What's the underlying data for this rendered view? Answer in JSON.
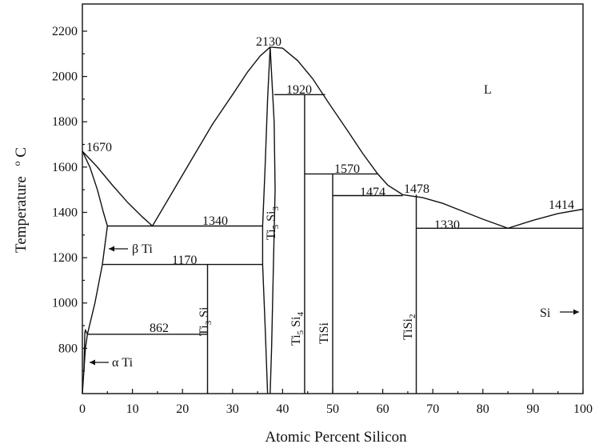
{
  "chart_data": {
    "type": "phase-diagram",
    "xlabel": "Atomic Percent Silicon",
    "ylabel": "Temperature",
    "ylabel_unit": "°C",
    "xlim": [
      0,
      100
    ],
    "ylim": [
      600,
      2320
    ],
    "x_ticks": [
      0,
      10,
      20,
      30,
      40,
      50,
      60,
      70,
      80,
      90,
      100
    ],
    "y_ticks": [
      800,
      1000,
      1200,
      1400,
      1600,
      1800,
      2000,
      2200
    ],
    "grid": false,
    "temperature_labels": [
      {
        "text": "1670",
        "x": 0,
        "t": 1670
      },
      {
        "text": "2130",
        "x": 37.5,
        "t": 2130
      },
      {
        "text": "1920",
        "x": 44,
        "t": 1920
      },
      {
        "text": "1570",
        "x": 50,
        "t": 1570
      },
      {
        "text": "1474",
        "x": 58,
        "t": 1474
      },
      {
        "text": "1478",
        "x": 64,
        "t": 1478
      },
      {
        "text": "1414",
        "x": 100,
        "t": 1414
      },
      {
        "text": "1340",
        "x": 26,
        "t": 1340
      },
      {
        "text": "1170",
        "x": 21,
        "t": 1170
      },
      {
        "text": "862",
        "x": 16,
        "t": 862
      },
      {
        "text": "1330",
        "x": 75,
        "t": 1330
      }
    ],
    "phase_labels": {
      "liquid": "L",
      "beta_ti": "β Ti",
      "alpha_ti": "α Ti",
      "si": "Si",
      "ti3si": {
        "base": "Ti",
        "sub1": "3",
        "mid": " Si",
        "sub2": ""
      },
      "ti5si3": {
        "base": "Ti",
        "sub1": "5",
        "mid": " Si",
        "sub2": "3"
      },
      "ti5si4": {
        "base": "Ti",
        "sub1": "5",
        "mid": " Si",
        "sub2": "4"
      },
      "tisi": {
        "base": "TiSi",
        "sub1": "",
        "mid": "",
        "sub2": ""
      },
      "tisi2": {
        "base": "TiSi",
        "sub1": "",
        "mid": "",
        "sub2": "2"
      }
    },
    "phases": [
      {
        "name": "Ti3Si",
        "x": 25,
        "t_top": 1170
      },
      {
        "name": "Ti5Si3",
        "x": 37.5,
        "t_top": 2130
      },
      {
        "name": "Ti5Si4",
        "x": 44.4,
        "t_top": 1920
      },
      {
        "name": "TiSi",
        "x": 50,
        "t_top": 1570
      },
      {
        "name": "TiSi2",
        "x": 66.7,
        "t_top": 1478
      }
    ],
    "invariants": [
      {
        "t": 1340,
        "x_range": [
          5,
          36
        ]
      },
      {
        "t": 1170,
        "x_range": [
          4,
          36
        ]
      },
      {
        "t": 862,
        "x_range": [
          1,
          25
        ]
      },
      {
        "t": 1330,
        "x_range": [
          66.7,
          100
        ]
      }
    ]
  }
}
